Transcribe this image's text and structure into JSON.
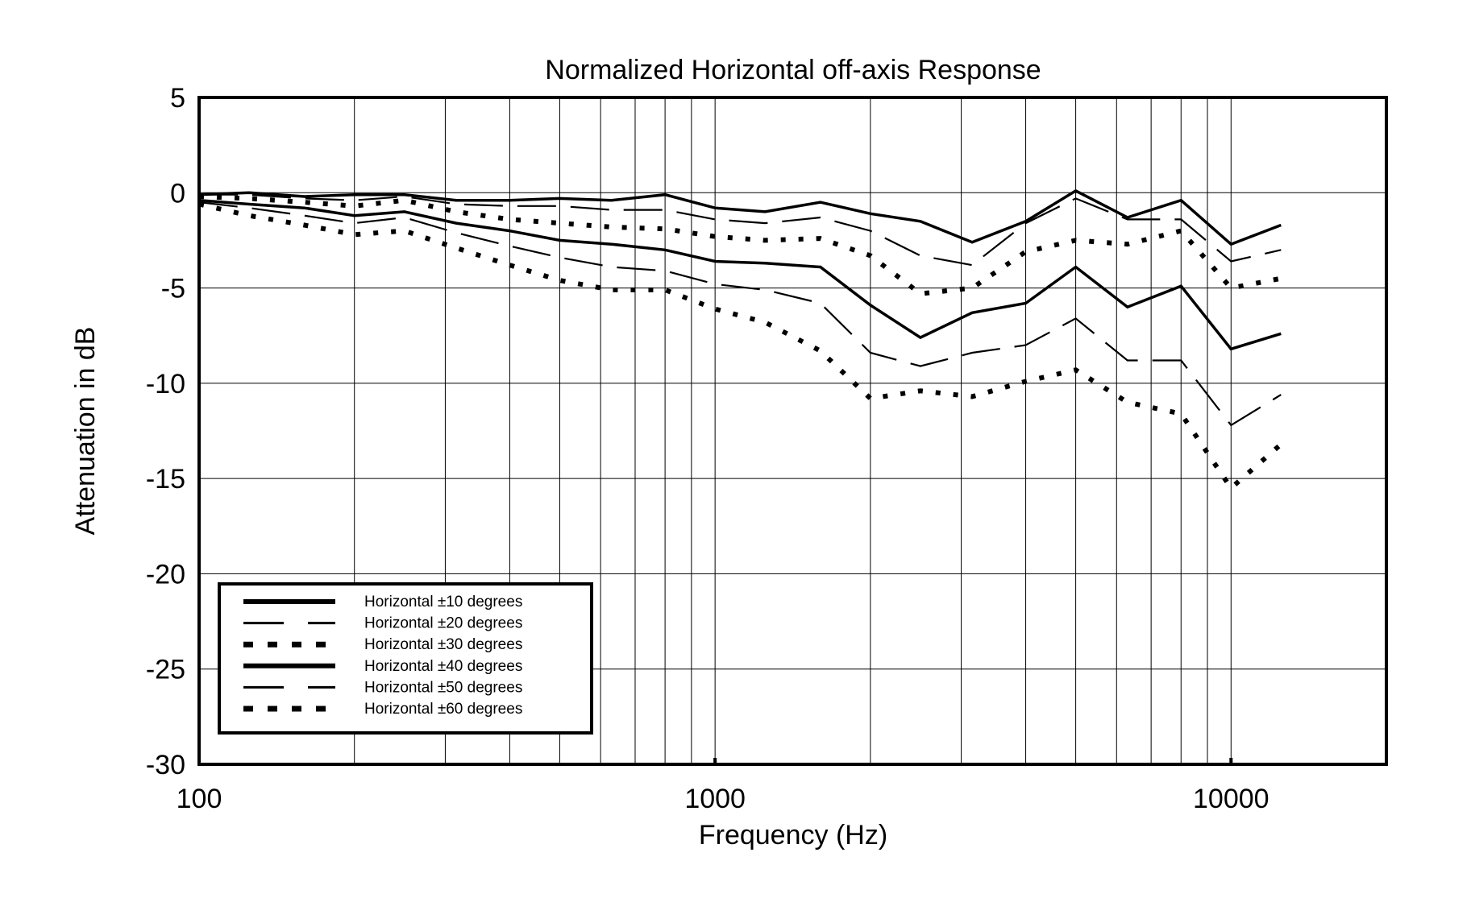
{
  "chart_data": {
    "type": "line",
    "title": "Normalized Horizontal off-axis Response",
    "xlabel": "Frequency (Hz)",
    "ylabel": "Attenuation in dB",
    "xscale": "log",
    "xlim": [
      100,
      20000
    ],
    "ylim": [
      -30,
      5
    ],
    "xticks": [
      100,
      1000,
      10000
    ],
    "xtick_labels": [
      "100",
      "1000",
      "10000"
    ],
    "yticks": [
      5,
      0,
      -5,
      -10,
      -15,
      -20,
      -25,
      -30
    ],
    "ytick_labels": [
      "5",
      "0",
      "-5",
      "-10",
      "-15",
      "-20",
      "-25",
      "-30"
    ],
    "grid": true,
    "legend_position": "bottom-left",
    "series": [
      {
        "name": "Horizontal ±10 degrees",
        "style": "solid-thick",
        "x": [
          100,
          125,
          160,
          200,
          250,
          315,
          400,
          500,
          630,
          800,
          1000,
          1250,
          1600,
          2000,
          2500,
          3150,
          4000,
          5000,
          6300,
          8000,
          10000,
          12500
        ],
        "y": [
          -0.1,
          0.0,
          -0.2,
          -0.1,
          -0.1,
          -0.4,
          -0.4,
          -0.3,
          -0.4,
          -0.1,
          -0.8,
          -1.0,
          -0.5,
          -1.1,
          -1.5,
          -2.6,
          -1.5,
          0.1,
          -1.3,
          -0.4,
          -2.7,
          -1.7
        ]
      },
      {
        "name": "Horizontal ±20 degrees",
        "style": "dash",
        "x": [
          100,
          125,
          160,
          200,
          250,
          315,
          400,
          500,
          630,
          800,
          1000,
          1250,
          1600,
          2000,
          2500,
          3150,
          4000,
          5000,
          6300,
          8000,
          10000,
          12500
        ],
        "y": [
          -0.1,
          -0.1,
          -0.3,
          -0.4,
          -0.2,
          -0.6,
          -0.7,
          -0.7,
          -0.9,
          -0.9,
          -1.4,
          -1.6,
          -1.3,
          -2.0,
          -3.3,
          -3.8,
          -1.6,
          -0.3,
          -1.4,
          -1.4,
          -3.6,
          -3.0
        ]
      },
      {
        "name": "Horizontal ±30 degrees",
        "style": "dot-thick",
        "x": [
          100,
          125,
          160,
          200,
          250,
          315,
          400,
          500,
          630,
          800,
          1000,
          1250,
          1600,
          2000,
          2500,
          3150,
          4000,
          5000,
          6300,
          8000,
          10000,
          12500
        ],
        "y": [
          -0.2,
          -0.3,
          -0.5,
          -0.7,
          -0.4,
          -1.0,
          -1.4,
          -1.6,
          -1.8,
          -1.9,
          -2.3,
          -2.5,
          -2.4,
          -3.3,
          -5.3,
          -5.0,
          -3.1,
          -2.5,
          -2.7,
          -2.0,
          -5.0,
          -4.5
        ]
      },
      {
        "name": "Horizontal ±40 degrees",
        "style": "solid-thick",
        "x": [
          100,
          125,
          160,
          200,
          250,
          315,
          400,
          500,
          630,
          800,
          1000,
          1250,
          1600,
          2000,
          2500,
          3150,
          4000,
          5000,
          6300,
          8000,
          10000,
          12500
        ],
        "y": [
          -0.4,
          -0.6,
          -0.8,
          -1.2,
          -1.0,
          -1.6,
          -2.0,
          -2.5,
          -2.7,
          -3.0,
          -3.6,
          -3.7,
          -3.9,
          -5.9,
          -7.6,
          -6.3,
          -5.8,
          -3.9,
          -6.0,
          -4.9,
          -8.2,
          -7.4
        ]
      },
      {
        "name": "Horizontal ±50 degrees",
        "style": "dash",
        "x": [
          100,
          125,
          160,
          200,
          250,
          315,
          400,
          500,
          630,
          800,
          1000,
          1250,
          1600,
          2000,
          2500,
          3150,
          4000,
          5000,
          6300,
          8000,
          10000,
          12500
        ],
        "y": [
          -0.5,
          -0.8,
          -1.2,
          -1.6,
          -1.3,
          -2.1,
          -2.8,
          -3.4,
          -3.9,
          -4.1,
          -4.8,
          -5.1,
          -5.8,
          -8.4,
          -9.1,
          -8.4,
          -8.0,
          -6.6,
          -8.8,
          -8.8,
          -12.2,
          -10.6
        ]
      },
      {
        "name": "Horizontal ±60 degrees",
        "style": "dot-thick",
        "x": [
          100,
          125,
          160,
          200,
          250,
          315,
          400,
          500,
          630,
          800,
          1000,
          1250,
          1600,
          2000,
          2500,
          3150,
          4000,
          5000,
          6300,
          8000,
          10000,
          12500
        ],
        "y": [
          -0.6,
          -1.2,
          -1.7,
          -2.2,
          -2.0,
          -2.9,
          -3.8,
          -4.6,
          -5.1,
          -5.1,
          -6.1,
          -6.8,
          -8.3,
          -10.8,
          -10.4,
          -10.7,
          -9.9,
          -9.3,
          -11.0,
          -11.6,
          -15.5,
          -13.2
        ]
      }
    ]
  }
}
